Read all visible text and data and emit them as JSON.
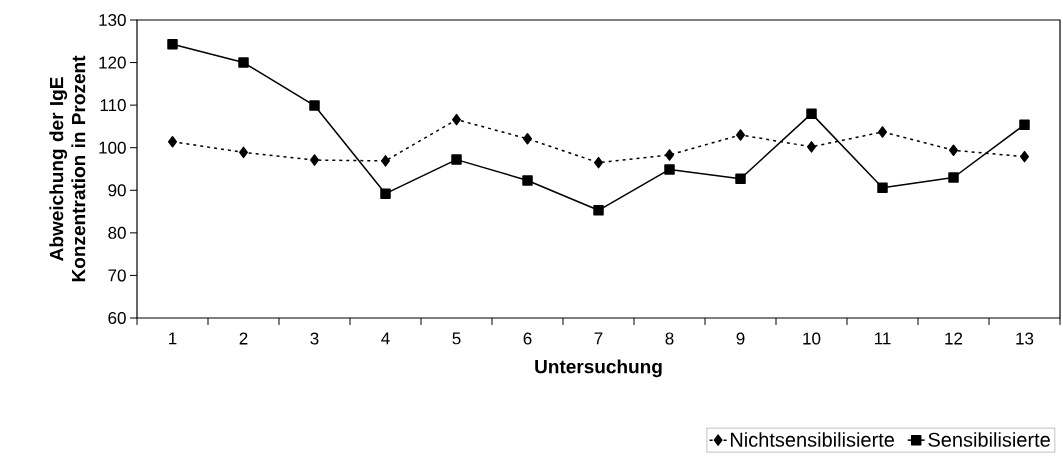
{
  "chart_data": {
    "type": "line",
    "xlabel": "Untersuchung",
    "ylabel": "Abweichung der IgE Konzentration in Prozent",
    "categories": [
      "1",
      "2",
      "3",
      "4",
      "5",
      "6",
      "7",
      "8",
      "9",
      "10",
      "11",
      "12",
      "13"
    ],
    "series": [
      {
        "name": "Nichtsensibilisierte",
        "color": "#000000",
        "marker": "diamond",
        "line_style": "dotted",
        "values": [
          101.4,
          98.9,
          97.1,
          96.9,
          106.6,
          102.1,
          96.5,
          98.3,
          103.0,
          100.2,
          103.7,
          99.4,
          97.9
        ]
      },
      {
        "name": "Sensibilisierte",
        "color": "#000000",
        "marker": "square",
        "line_style": "solid",
        "values": [
          124.3,
          120.0,
          109.9,
          89.2,
          97.2,
          92.3,
          85.3,
          94.9,
          92.7,
          108.0,
          90.6,
          93.0,
          105.4
        ]
      }
    ],
    "ylim": [
      60,
      130
    ],
    "yticks": [
      60,
      70,
      80,
      90,
      100,
      110,
      120,
      130
    ],
    "grid": false,
    "legend": "bottom right"
  }
}
